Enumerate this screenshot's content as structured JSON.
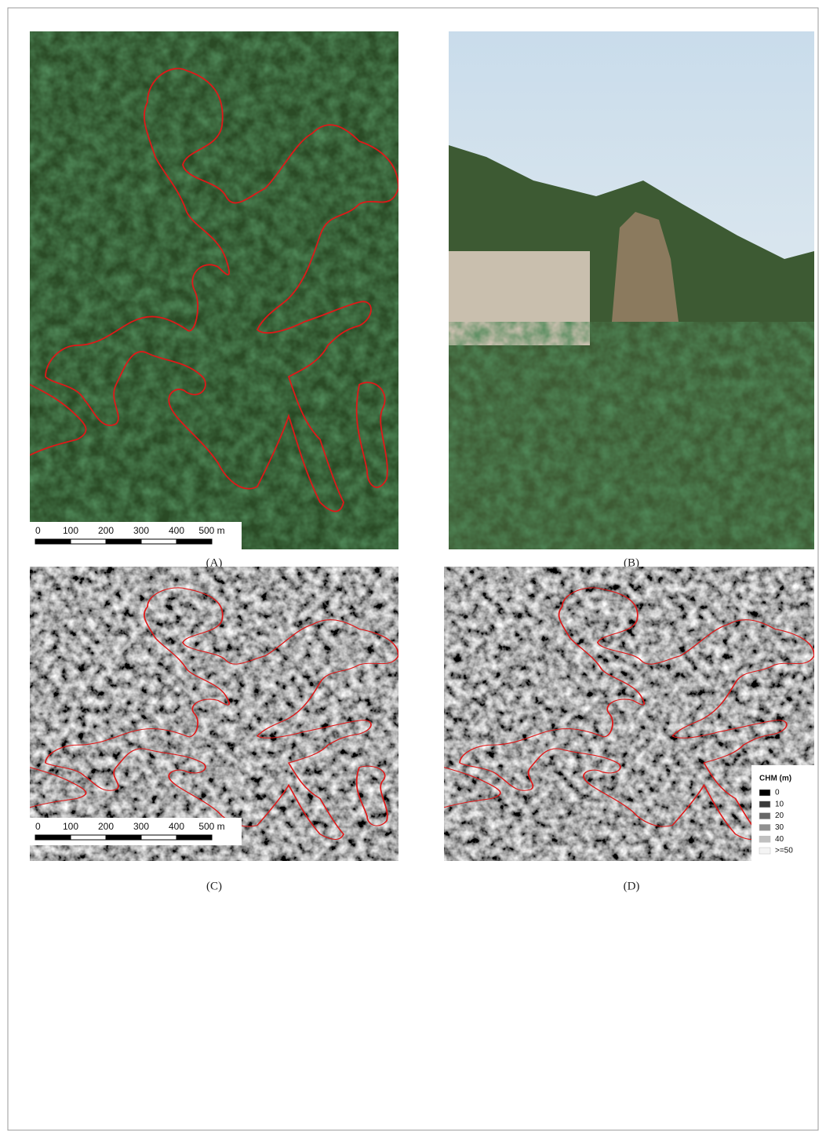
{
  "panels": [
    {
      "label": "(A)"
    },
    {
      "label": "(B)"
    },
    {
      "label": "(C)"
    },
    {
      "label": "(D)"
    }
  ],
  "scale_bar": {
    "labels": [
      "0",
      "100",
      "200",
      "300",
      "400",
      "500 m"
    ]
  },
  "legend": {
    "title": "CHM (m)",
    "items": [
      "0",
      "10",
      "20",
      "30",
      "40",
      ">=50"
    ]
  }
}
